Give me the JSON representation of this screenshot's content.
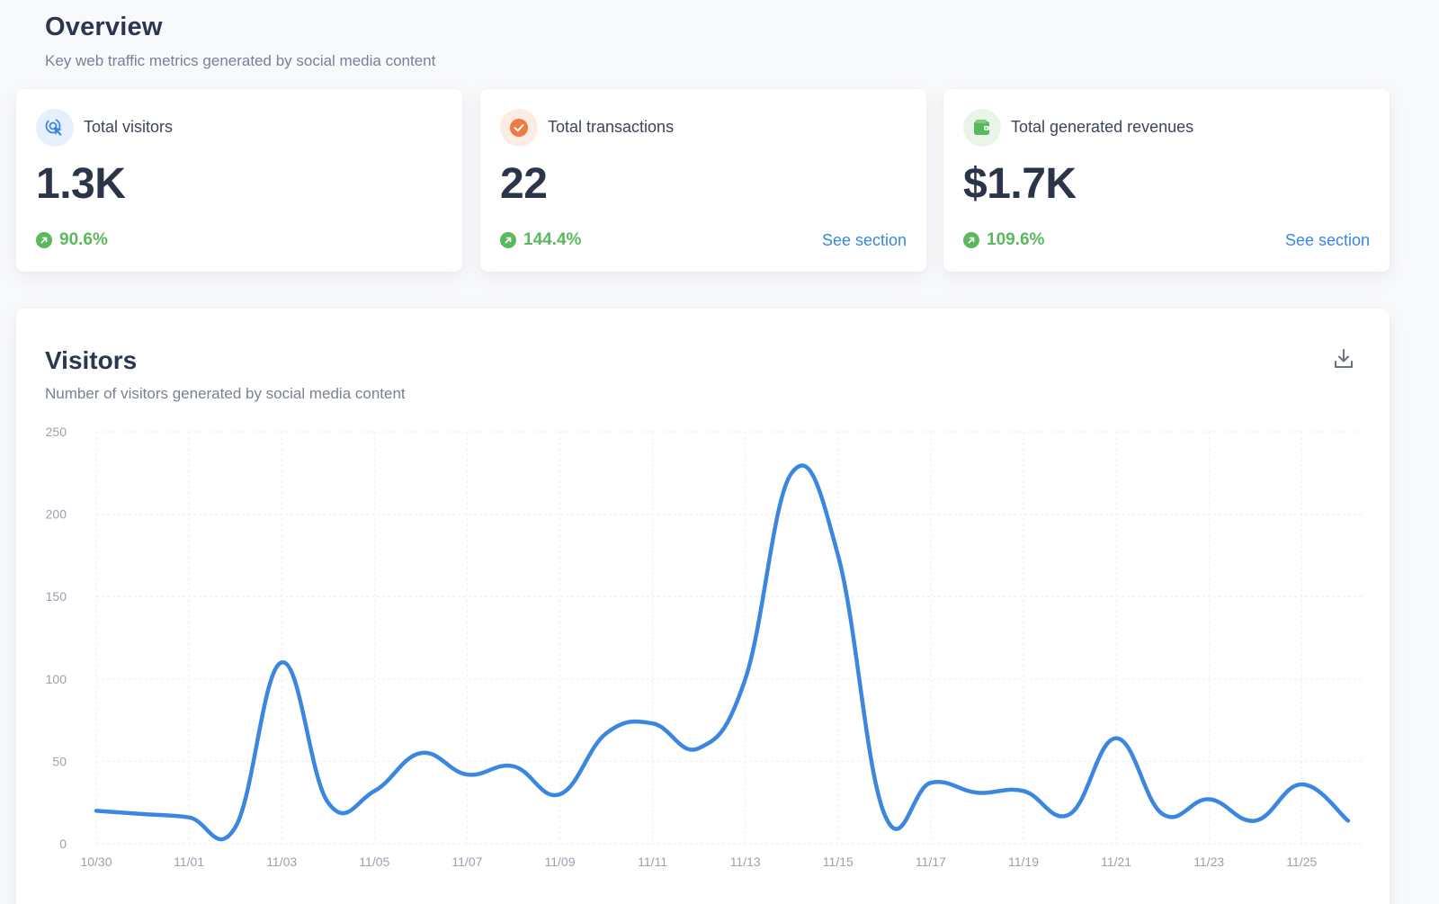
{
  "header": {
    "title": "Overview",
    "subtitle": "Key web traffic metrics generated by social media content"
  },
  "cards": [
    {
      "label": "Total visitors",
      "value": "1.3K",
      "delta": "90.6%",
      "icon": "cursor-click-icon",
      "icon_color": "#3a86e0",
      "icon_bg": "#e6f0fc"
    },
    {
      "label": "Total transactions",
      "value": "22",
      "delta": "144.4%",
      "link": "See section",
      "icon": "check-circle-icon",
      "icon_color": "#ee7a43",
      "icon_bg": "#fdece3"
    },
    {
      "label": "Total generated revenues",
      "value": "$1.7K",
      "delta": "109.6%",
      "link": "See section",
      "icon": "wallet-icon",
      "icon_color": "#5cb85c",
      "icon_bg": "#e8f5e8"
    }
  ],
  "colors": {
    "positive": "#5cb85c",
    "link": "#3a86e0",
    "line": "#3a86e0"
  },
  "visitors": {
    "title": "Visitors",
    "subtitle": "Number of visitors generated by social media content",
    "download_icon": "download-icon"
  },
  "chart_data": {
    "type": "line",
    "x": [
      "10/30",
      "10/31",
      "11/01",
      "11/02",
      "11/03",
      "11/04",
      "11/05",
      "11/06",
      "11/07",
      "11/08",
      "11/09",
      "11/10",
      "11/11",
      "11/12",
      "11/13",
      "11/14",
      "11/15",
      "11/16",
      "11/17",
      "11/18",
      "11/19",
      "11/20",
      "11/21",
      "11/22",
      "11/23",
      "11/24",
      "11/25",
      "11/26"
    ],
    "x_tick_labels": [
      "10/30",
      "11/01",
      "11/03",
      "11/05",
      "11/07",
      "11/09",
      "11/11",
      "11/13",
      "11/15",
      "11/17",
      "11/19",
      "11/21",
      "11/23",
      "11/25"
    ],
    "series": [
      {
        "values": [
          20,
          18,
          16,
          10,
          110,
          25,
          32,
          55,
          42,
          47,
          30,
          67,
          73,
          58,
          100,
          225,
          175,
          18,
          37,
          31,
          32,
          18,
          64,
          18,
          27,
          14,
          36,
          14
        ]
      }
    ],
    "y_ticks": [
      0,
      50,
      100,
      150,
      200,
      250
    ],
    "ylim": [
      0,
      250
    ],
    "grid": true,
    "legend": "none"
  }
}
